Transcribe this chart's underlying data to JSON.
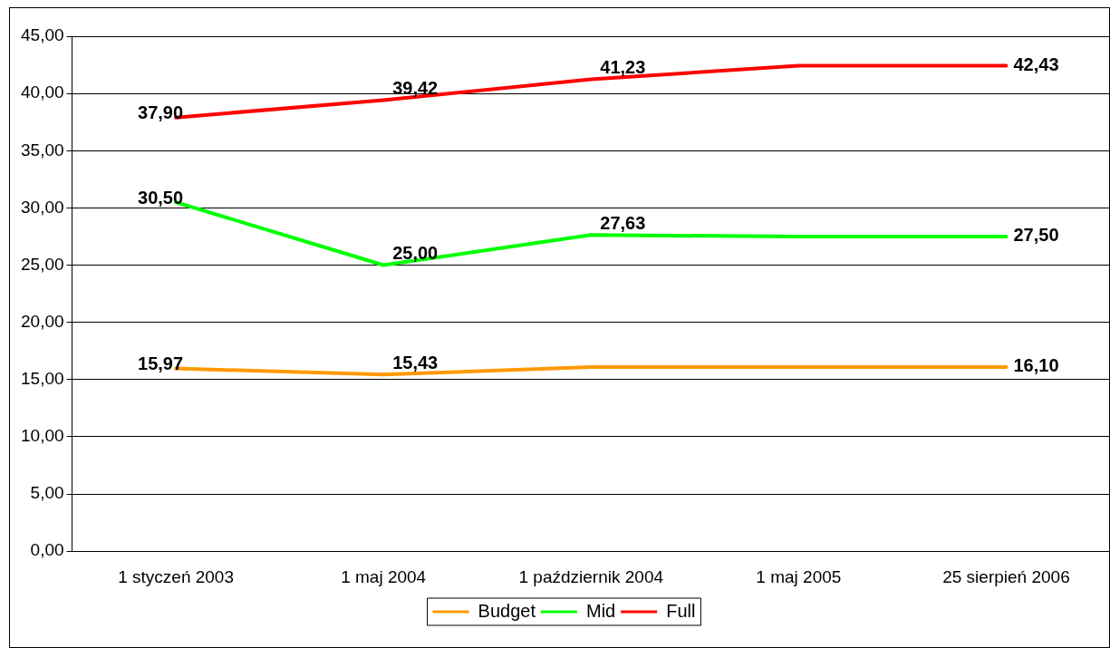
{
  "chart_data": {
    "type": "line",
    "categories": [
      "1 styczeń 2003",
      "1 maj 2004",
      "1 październik 2004",
      "1 maj 2005",
      "25 sierpień 2006"
    ],
    "series": [
      {
        "name": "Budget",
        "color": "#ff9900",
        "values": [
          15.97,
          15.43,
          16.1,
          16.1,
          16.1
        ],
        "value_labels": [
          "15,97",
          "15,43",
          null,
          null,
          "16,10"
        ]
      },
      {
        "name": "Mid",
        "color": "#00ff00",
        "values": [
          30.5,
          25.0,
          27.63,
          27.5,
          27.5
        ],
        "value_labels": [
          "30,50",
          "25,00",
          "27,63",
          null,
          "27,50"
        ]
      },
      {
        "name": "Full",
        "color": "#ff0000",
        "values": [
          37.9,
          39.42,
          41.23,
          42.43,
          42.43
        ],
        "value_labels": [
          "37,90",
          "39,42",
          "41,23",
          null,
          "42,43"
        ]
      }
    ],
    "ylim": [
      0,
      45
    ],
    "yticks": [
      {
        "value": 0,
        "label": "0,00"
      },
      {
        "value": 5,
        "label": "5,00"
      },
      {
        "value": 10,
        "label": "10,00"
      },
      {
        "value": 15,
        "label": "15,00"
      },
      {
        "value": 20,
        "label": "20,00"
      },
      {
        "value": 25,
        "label": "25,00"
      },
      {
        "value": 30,
        "label": "30,00"
      },
      {
        "value": 35,
        "label": "35,00"
      },
      {
        "value": 40,
        "label": "40,00"
      },
      {
        "value": 45,
        "label": "45,00"
      }
    ],
    "grid": "y",
    "legend": "bottom",
    "marker": "none",
    "line_style": "solid"
  }
}
